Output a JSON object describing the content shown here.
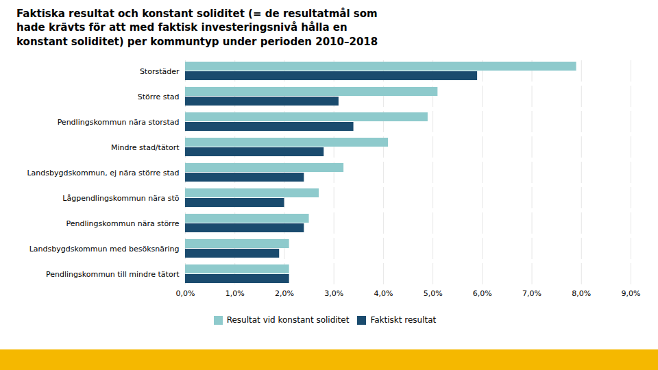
{
  "chart_data": {
    "type": "bar",
    "orientation": "horizontal",
    "title": "Faktiska resultat och konstant soliditet (= de resultatmål som\nhade krävts för att med faktisk  investeringsnivå hålla en\nkonstant soliditet) per kommuntyp under perioden 2010–2018",
    "categories": [
      "Storstäder",
      "Större stad",
      "Pendlingskommun nära storstad",
      "Mindre stad/tätort",
      "Landsbygdskommun, ej nära större stad",
      "Lågpendlingskommun nära stö",
      "Pendlingskommun nära större",
      "Landsbygdskommun med besöksnäring",
      "Pendlingskommun till mindre tätort"
    ],
    "series": [
      {
        "name": "Resultat vid konstant soliditet",
        "color": "#8ecacc",
        "values": [
          0.079,
          0.051,
          0.049,
          0.041,
          0.032,
          0.027,
          0.025,
          0.021,
          0.021
        ]
      },
      {
        "name": "Faktiskt resultat",
        "color": "#1a4b6e",
        "values": [
          0.059,
          0.031,
          0.034,
          0.028,
          0.024,
          0.02,
          0.024,
          0.019,
          0.021
        ]
      }
    ],
    "xlim": [
      0,
      0.09
    ],
    "xticks": [
      {
        "value": 0.0,
        "label": "0,0%"
      },
      {
        "value": 0.01,
        "label": "1,0%"
      },
      {
        "value": 0.02,
        "label": "2,0%"
      },
      {
        "value": 0.03,
        "label": "3,0%"
      },
      {
        "value": 0.04,
        "label": "4,0%"
      },
      {
        "value": 0.05,
        "label": "5,0%"
      },
      {
        "value": 0.06,
        "label": "6,0%"
      },
      {
        "value": 0.07,
        "label": "7,0%"
      },
      {
        "value": 0.08,
        "label": "8,0%"
      },
      {
        "value": 0.09,
        "label": "9,0%"
      }
    ],
    "grid": true,
    "legend": "bottom"
  }
}
